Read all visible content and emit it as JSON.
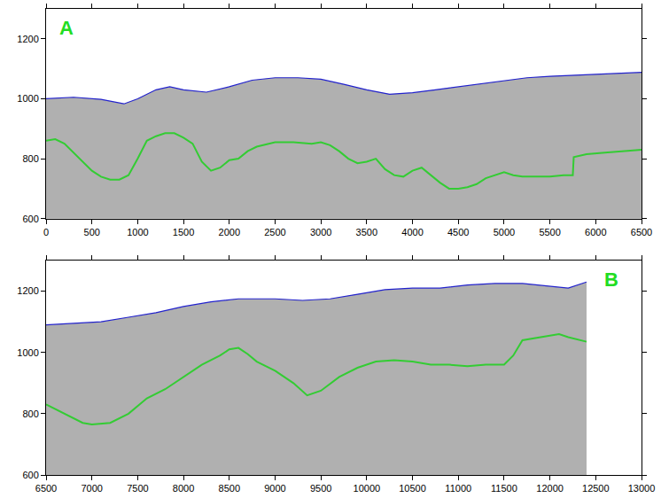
{
  "chart_data": [
    {
      "type": "line",
      "label": "A",
      "label_color": "#22dd22",
      "xlim": [
        0,
        6500
      ],
      "ylim": [
        600,
        1300
      ],
      "xticks": [
        0,
        500,
        1000,
        1500,
        2000,
        2500,
        3000,
        3500,
        4000,
        4500,
        5000,
        5500,
        6000,
        6500
      ],
      "yticks": [
        600,
        800,
        1000,
        1200
      ],
      "series": [
        {
          "color": "#2222cc",
          "x": [
            0,
            300,
            600,
            850,
            1000,
            1200,
            1350,
            1500,
            1750,
            2000,
            2250,
            2500,
            2750,
            3000,
            3250,
            3500,
            3750,
            4000,
            4250,
            4500,
            4750,
            5000,
            5250,
            5500,
            6000,
            6500
          ],
          "values": [
            1000,
            1005,
            998,
            983,
            1000,
            1030,
            1040,
            1030,
            1022,
            1040,
            1062,
            1070,
            1070,
            1065,
            1048,
            1030,
            1015,
            1020,
            1030,
            1040,
            1050,
            1060,
            1070,
            1075,
            1082,
            1088
          ]
        },
        {
          "color": "#33cc33",
          "x": [
            0,
            100,
            200,
            300,
            400,
            500,
            600,
            700,
            800,
            900,
            1000,
            1100,
            1200,
            1300,
            1400,
            1500,
            1600,
            1700,
            1800,
            1900,
            2000,
            2100,
            2200,
            2300,
            2500,
            2700,
            2900,
            3000,
            3100,
            3200,
            3300,
            3400,
            3500,
            3600,
            3700,
            3800,
            3900,
            4000,
            4100,
            4200,
            4300,
            4400,
            4500,
            4600,
            4700,
            4800,
            4900,
            5000,
            5100,
            5200,
            5300,
            5500,
            5650,
            5750,
            5760,
            5900,
            6100,
            6300,
            6500
          ],
          "values": [
            860,
            865,
            850,
            820,
            790,
            760,
            740,
            730,
            730,
            745,
            800,
            860,
            875,
            885,
            885,
            870,
            850,
            790,
            760,
            770,
            795,
            800,
            825,
            840,
            855,
            855,
            850,
            855,
            845,
            825,
            800,
            785,
            790,
            800,
            765,
            745,
            740,
            760,
            770,
            745,
            720,
            700,
            700,
            705,
            715,
            735,
            745,
            755,
            745,
            740,
            740,
            740,
            745,
            745,
            805,
            815,
            820,
            825,
            830
          ]
        }
      ]
    },
    {
      "type": "line",
      "label": "B",
      "label_color": "#22dd22",
      "xlim": [
        6500,
        13000
      ],
      "ylim": [
        600,
        1300
      ],
      "xticks": [
        6500,
        7000,
        7500,
        8000,
        8500,
        9000,
        9500,
        10000,
        10500,
        11000,
        11500,
        12000,
        12500,
        13000
      ],
      "yticks": [
        600,
        800,
        1000,
        1200
      ],
      "series": [
        {
          "color": "#2222cc",
          "x": [
            6500,
            6800,
            7100,
            7400,
            7700,
            8000,
            8300,
            8600,
            9000,
            9300,
            9600,
            9900,
            10200,
            10500,
            10800,
            11100,
            11400,
            11700,
            12000,
            12200,
            12400
          ],
          "values": [
            1090,
            1095,
            1100,
            1115,
            1130,
            1150,
            1165,
            1175,
            1175,
            1170,
            1175,
            1190,
            1205,
            1210,
            1210,
            1220,
            1225,
            1225,
            1215,
            1210,
            1230
          ]
        },
        {
          "color": "#33cc33",
          "x": [
            6500,
            6700,
            6900,
            7000,
            7200,
            7400,
            7600,
            7800,
            8000,
            8200,
            8400,
            8500,
            8600,
            8700,
            8800,
            9000,
            9200,
            9350,
            9500,
            9700,
            9900,
            10100,
            10300,
            10500,
            10700,
            10900,
            11100,
            11300,
            11500,
            11600,
            11700,
            11900,
            12100,
            12200,
            12400
          ],
          "values": [
            830,
            800,
            770,
            765,
            770,
            800,
            850,
            880,
            920,
            960,
            990,
            1010,
            1015,
            995,
            970,
            940,
            900,
            860,
            875,
            920,
            950,
            970,
            975,
            970,
            960,
            960,
            955,
            960,
            960,
            990,
            1040,
            1050,
            1060,
            1050,
            1035
          ]
        }
      ]
    }
  ]
}
